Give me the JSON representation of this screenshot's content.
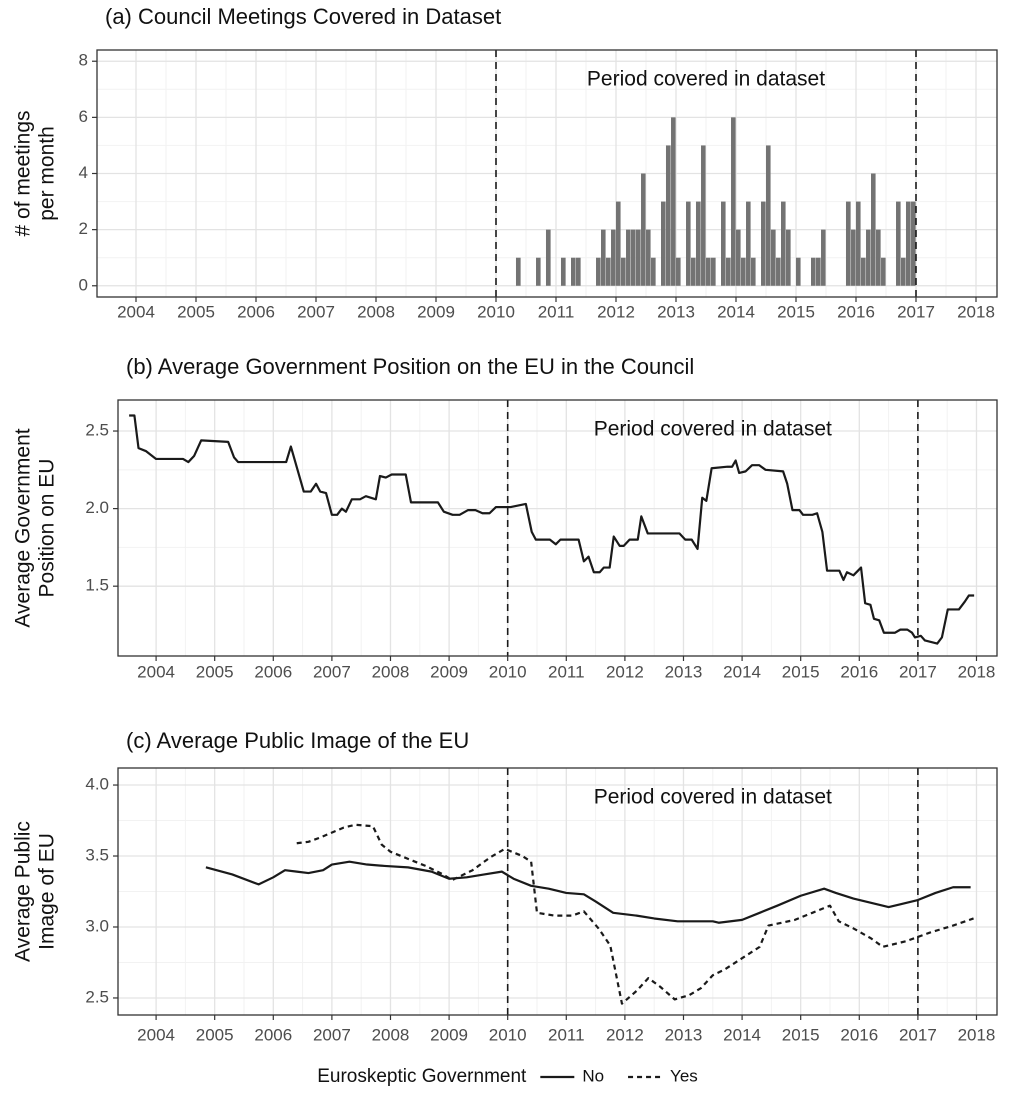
{
  "chart_data": [
    {
      "type": "histogram",
      "title": "(a) Council Meetings Covered in Dataset",
      "ylabel": [
        "# of meetings",
        "per month"
      ],
      "annotation": "Period covered in dataset",
      "vlines": [
        2010,
        2017
      ],
      "color": "#737373",
      "grid": true,
      "xlim": [
        2003.35,
        2018.35
      ],
      "xticks": [
        2004,
        2005,
        2006,
        2007,
        2008,
        2009,
        2010,
        2011,
        2012,
        2013,
        2014,
        2015,
        2016,
        2017,
        2018
      ],
      "ylim": [
        -0.4,
        8.4
      ],
      "yticks": [
        0,
        2,
        4,
        6,
        8
      ],
      "bins": [
        2010,
        2010.083,
        2010.167,
        2010.25,
        2010.333,
        2010.417,
        2010.5,
        2010.583,
        2010.667,
        2010.75,
        2010.833,
        2010.917,
        2011,
        2011.083,
        2011.167,
        2011.25,
        2011.333,
        2011.417,
        2011.5,
        2011.583,
        2011.667,
        2011.75,
        2011.833,
        2011.917,
        2012,
        2012.083,
        2012.167,
        2012.25,
        2012.333,
        2012.417,
        2012.5,
        2012.583,
        2012.667,
        2012.75,
        2012.833,
        2012.917,
        2013,
        2013.083,
        2013.167,
        2013.25,
        2013.333,
        2013.417,
        2013.5,
        2013.583,
        2013.667,
        2013.75,
        2013.833,
        2013.917,
        2014,
        2014.083,
        2014.167,
        2014.25,
        2014.333,
        2014.417,
        2014.5,
        2014.583,
        2014.667,
        2014.75,
        2014.833,
        2014.917,
        2015,
        2015.083,
        2015.167,
        2015.25,
        2015.333,
        2015.417,
        2015.5,
        2015.583,
        2015.667,
        2015.75,
        2015.833,
        2015.917,
        2016,
        2016.083,
        2016.167,
        2016.25,
        2016.333,
        2016.417,
        2016.5,
        2016.583,
        2016.667,
        2016.75,
        2016.833,
        2016.917,
        2017
      ],
      "values": [
        0,
        0,
        0,
        0,
        1,
        0,
        0,
        0,
        1,
        0,
        2,
        0,
        0,
        1,
        0,
        1,
        1,
        0,
        0,
        0,
        1,
        2,
        1,
        2,
        3,
        1,
        2,
        2,
        2,
        4,
        2,
        1,
        0,
        3,
        5,
        6,
        1,
        0,
        3,
        1,
        3,
        5,
        1,
        1,
        0,
        3,
        1,
        6,
        2,
        1,
        3,
        1,
        0,
        3,
        5,
        2,
        1,
        3,
        2,
        0,
        1,
        0,
        0,
        1,
        1,
        2,
        0,
        0,
        0,
        0,
        3,
        2,
        3,
        1,
        2,
        4,
        2,
        1,
        0,
        0,
        3,
        1,
        3,
        3
      ]
    },
    {
      "type": "line",
      "title": "(b) Average Government Position on the EU in the Council",
      "ylabel": [
        "Average Government",
        "Position on EU"
      ],
      "annotation": "Period covered in dataset",
      "vlines": [
        2010,
        2017
      ],
      "color": "#1a1a1a",
      "grid": true,
      "xlim": [
        2003.35,
        2018.35
      ],
      "xticks": [
        2004,
        2005,
        2006,
        2007,
        2008,
        2009,
        2010,
        2011,
        2012,
        2013,
        2014,
        2015,
        2016,
        2017,
        2018
      ],
      "ylim": [
        1.05,
        2.7
      ],
      "yticks": [
        1.5,
        {
          "value": 2,
          "label": "2.0"
        },
        2.5
      ],
      "x": [
        2003.54,
        2003.63,
        2003.7,
        2003.83,
        2004.0,
        2004.46,
        2004.55,
        2004.65,
        2004.77,
        2005.23,
        2005.33,
        2005.4,
        2006.22,
        2006.3,
        2006.52,
        2006.64,
        2006.73,
        2006.8,
        2006.9,
        2007.0,
        2007.09,
        2007.17,
        2007.24,
        2007.34,
        2007.48,
        2007.58,
        2007.75,
        2007.82,
        2007.92,
        2008.02,
        2008.26,
        2008.35,
        2008.81,
        2008.91,
        2009.06,
        2009.18,
        2009.32,
        2009.45,
        2009.57,
        2009.69,
        2009.8,
        2010.05,
        2010.31,
        2010.41,
        2010.48,
        2010.72,
        2010.82,
        2010.9,
        2011.21,
        2011.3,
        2011.38,
        2011.47,
        2011.57,
        2011.64,
        2011.74,
        2011.81,
        2011.91,
        2011.98,
        2012.08,
        2012.22,
        2012.28,
        2012.39,
        2012.93,
        2013.03,
        2013.14,
        2013.24,
        2013.32,
        2013.39,
        2013.48,
        2013.75,
        2013.83,
        2013.89,
        2013.95,
        2014.06,
        2014.17,
        2014.29,
        2014.4,
        2014.7,
        2014.77,
        2014.86,
        2014.98,
        2015.04,
        2015.2,
        2015.28,
        2015.37,
        2015.45,
        2015.66,
        2015.73,
        2015.79,
        2015.9,
        2016.03,
        2016.1,
        2016.19,
        2016.25,
        2016.34,
        2016.42,
        2016.61,
        2016.7,
        2016.82,
        2016.9,
        2016.95,
        2017.05,
        2017.12,
        2017.33,
        2017.41,
        2017.51,
        2017.7,
        2017.8,
        2017.87,
        2017.96
      ],
      "values": [
        2.6,
        2.6,
        2.39,
        2.37,
        2.32,
        2.32,
        2.3,
        2.34,
        2.44,
        2.43,
        2.33,
        2.3,
        2.3,
        2.4,
        2.11,
        2.11,
        2.16,
        2.11,
        2.1,
        1.96,
        1.96,
        2.0,
        1.98,
        2.06,
        2.06,
        2.08,
        2.06,
        2.21,
        2.2,
        2.22,
        2.22,
        2.04,
        2.04,
        1.98,
        1.96,
        1.96,
        1.99,
        1.99,
        1.97,
        1.97,
        2.01,
        2.01,
        2.03,
        1.85,
        1.8,
        1.8,
        1.77,
        1.8,
        1.8,
        1.66,
        1.69,
        1.59,
        1.59,
        1.62,
        1.62,
        1.82,
        1.76,
        1.76,
        1.8,
        1.8,
        1.95,
        1.84,
        1.84,
        1.8,
        1.8,
        1.74,
        2.07,
        2.05,
        2.26,
        2.27,
        2.27,
        2.31,
        2.23,
        2.24,
        2.28,
        2.28,
        2.25,
        2.24,
        2.16,
        1.99,
        1.99,
        1.96,
        1.96,
        1.97,
        1.85,
        1.6,
        1.6,
        1.54,
        1.59,
        1.57,
        1.62,
        1.39,
        1.38,
        1.29,
        1.28,
        1.2,
        1.2,
        1.22,
        1.22,
        1.2,
        1.17,
        1.18,
        1.15,
        1.13,
        1.17,
        1.35,
        1.35,
        1.4,
        1.44,
        1.44
      ]
    },
    {
      "type": "line",
      "title": "(c) Average Public Image of the EU",
      "ylabel": [
        "Average Public",
        "Image of EU"
      ],
      "annotation": "Period covered in dataset",
      "vlines": [
        2010,
        2017
      ],
      "grid": true,
      "legend": "bottom",
      "legend_title": "Euroskeptic Government",
      "xlim": [
        2003.35,
        2018.35
      ],
      "xticks": [
        2004,
        2005,
        2006,
        2007,
        2008,
        2009,
        2010,
        2011,
        2012,
        2013,
        2014,
        2015,
        2016,
        2017,
        2018
      ],
      "ylim": [
        2.38,
        4.12
      ],
      "yticks": [
        2.5,
        {
          "value": 3,
          "label": "3.0"
        },
        3.5,
        {
          "value": 4,
          "label": "4.0"
        }
      ],
      "series": [
        {
          "name": "No",
          "color": "#1a1a1a",
          "linestyle": "solid",
          "x": [
            2004.85,
            2005.3,
            2005.75,
            2006.0,
            2006.2,
            2006.4,
            2006.6,
            2006.85,
            2007.0,
            2007.3,
            2007.6,
            2007.9,
            2008.3,
            2008.7,
            2009.0,
            2009.3,
            2009.6,
            2009.9,
            2010.1,
            2010.4,
            2010.7,
            2011.0,
            2011.3,
            2011.5,
            2011.8,
            2012.2,
            2012.5,
            2012.9,
            2013.2,
            2013.5,
            2013.6,
            2014.0,
            2014.3,
            2014.6,
            2015.0,
            2015.4,
            2015.6,
            2015.9,
            2016.2,
            2016.5,
            2016.7,
            2017.0,
            2017.3,
            2017.6,
            2017.9
          ],
          "values": [
            3.42,
            3.37,
            3.3,
            3.35,
            3.4,
            3.39,
            3.38,
            3.4,
            3.44,
            3.46,
            3.44,
            3.43,
            3.42,
            3.39,
            3.34,
            3.35,
            3.37,
            3.39,
            3.34,
            3.29,
            3.27,
            3.24,
            3.23,
            3.18,
            3.1,
            3.08,
            3.06,
            3.04,
            3.04,
            3.04,
            3.03,
            3.05,
            3.1,
            3.15,
            3.22,
            3.27,
            3.24,
            3.2,
            3.17,
            3.14,
            3.16,
            3.19,
            3.24,
            3.28,
            3.28
          ]
        },
        {
          "name": "Yes",
          "color": "#1a1a1a",
          "linestyle": "dashed",
          "x": [
            2006.4,
            2006.6,
            2006.8,
            2007.2,
            2007.4,
            2007.7,
            2007.85,
            2008.0,
            2008.3,
            2008.6,
            2008.9,
            2009.05,
            2009.4,
            2009.7,
            2009.95,
            2010.25,
            2010.4,
            2010.5,
            2010.8,
            2011.1,
            2011.3,
            2011.55,
            2011.75,
            2011.95,
            2012.2,
            2012.4,
            2012.6,
            2012.85,
            2013.1,
            2013.3,
            2013.5,
            2013.7,
            2014.0,
            2014.3,
            2014.45,
            2014.9,
            2015.2,
            2015.5,
            2015.65,
            2015.9,
            2016.2,
            2016.4,
            2016.8,
            2017.2,
            2017.6,
            2017.95
          ],
          "values": [
            3.59,
            3.6,
            3.63,
            3.7,
            3.72,
            3.71,
            3.58,
            3.53,
            3.48,
            3.43,
            3.37,
            3.33,
            3.4,
            3.49,
            3.55,
            3.5,
            3.46,
            3.1,
            3.08,
            3.08,
            3.11,
            2.99,
            2.87,
            2.46,
            2.55,
            2.64,
            2.58,
            2.49,
            2.52,
            2.57,
            2.66,
            2.7,
            2.78,
            2.86,
            3.01,
            3.05,
            3.1,
            3.15,
            3.04,
            2.99,
            2.92,
            2.86,
            2.9,
            2.96,
            3.01,
            3.06
          ]
        }
      ]
    }
  ]
}
